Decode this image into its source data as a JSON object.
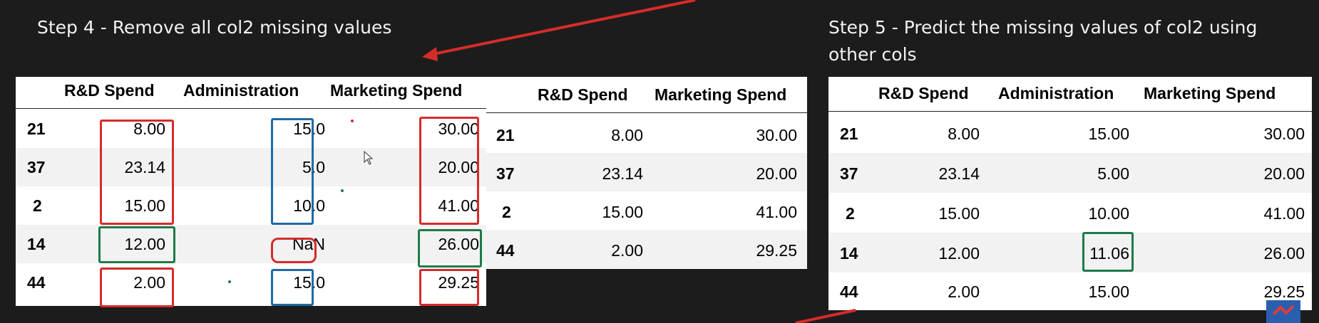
{
  "headings": {
    "step4": "Step 4 - Remove all col2 missing values",
    "step5": "Step 5 - Predict the missing values of col2 using other cols"
  },
  "table_left": {
    "columns": [
      "R&D Spend",
      "Administration",
      "Marketing Spend"
    ],
    "rows": [
      {
        "index": "21",
        "rd": "8.00",
        "admin": "15.0",
        "marketing": "30.00"
      },
      {
        "index": "37",
        "rd": "23.14",
        "admin": "5.0",
        "marketing": "20.00"
      },
      {
        "index": "2",
        "rd": "15.00",
        "admin": "10.0",
        "marketing": "41.00"
      },
      {
        "index": "14",
        "rd": "12.00",
        "admin": "NaN",
        "marketing": "26.00"
      },
      {
        "index": "44",
        "rd": "2.00",
        "admin": "15.0",
        "marketing": "29.25"
      }
    ]
  },
  "table_middle": {
    "columns": [
      "R&D Spend",
      "Marketing Spend"
    ],
    "rows": [
      {
        "index": "21",
        "rd": "8.00",
        "marketing": "30.00"
      },
      {
        "index": "37",
        "rd": "23.14",
        "marketing": "20.00"
      },
      {
        "index": "2",
        "rd": "15.00",
        "marketing": "41.00"
      },
      {
        "index": "44",
        "rd": "2.00",
        "marketing": "29.25"
      }
    ]
  },
  "table_right": {
    "columns": [
      "R&D Spend",
      "Administration",
      "Marketing Spend"
    ],
    "rows": [
      {
        "index": "21",
        "rd": "8.00",
        "admin": "15.00",
        "marketing": "30.00"
      },
      {
        "index": "37",
        "rd": "23.14",
        "admin": "5.00",
        "marketing": "20.00"
      },
      {
        "index": "2",
        "rd": "15.00",
        "admin": "10.00",
        "marketing": "41.00"
      },
      {
        "index": "14",
        "rd": "12.00",
        "admin": "11.06",
        "marketing": "26.00"
      },
      {
        "index": "44",
        "rd": "2.00",
        "admin": "15.00",
        "marketing": "29.25"
      }
    ]
  },
  "colors": {
    "background": "#1c1c1c",
    "annotation_red": "#d62b2b",
    "annotation_blue": "#1f6aa5",
    "annotation_green": "#1e7a4a"
  }
}
